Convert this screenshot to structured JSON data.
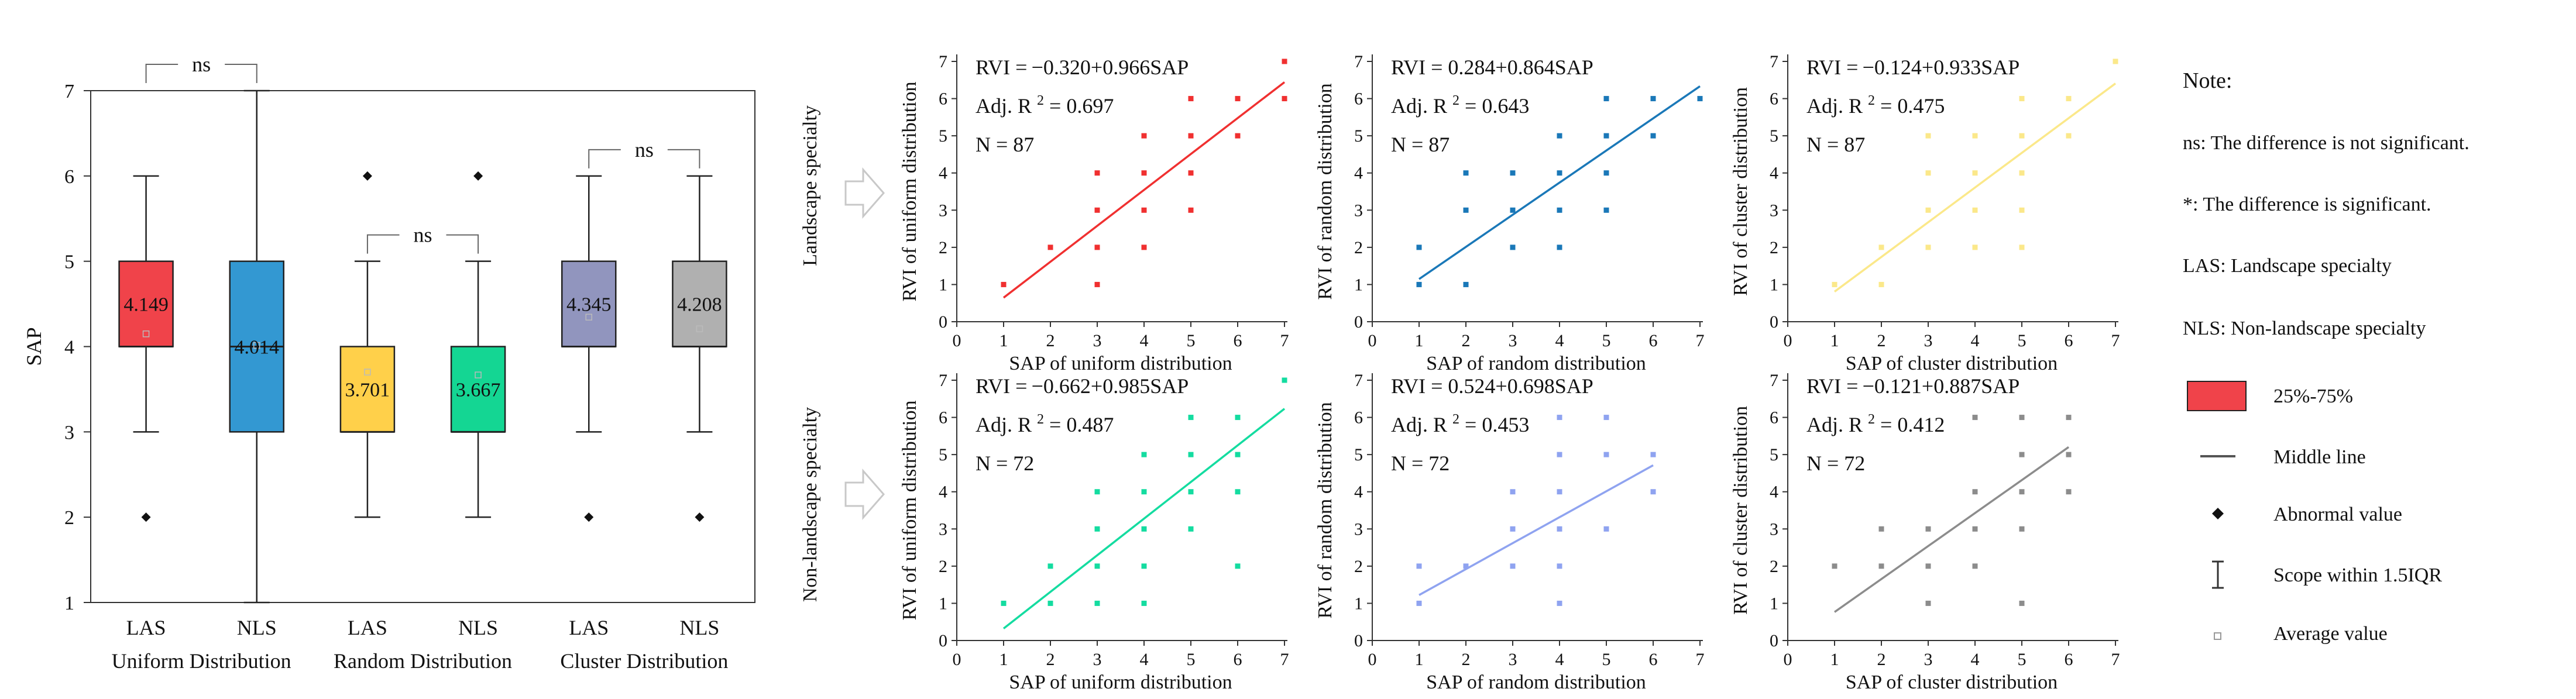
{
  "chart_data": [
    {
      "type": "box",
      "ylabel": "SAP",
      "ylim": [
        1,
        7
      ],
      "yticks": [
        1,
        2,
        3,
        4,
        5,
        6,
        7
      ],
      "groups": [
        "Uniform Distribution",
        "Random Distribution",
        "Cluster Distribution"
      ],
      "boxes": [
        {
          "label": "LAS",
          "group": "Uniform Distribution",
          "color": "#f0434a",
          "q1": 4,
          "median": 4,
          "q3": 5,
          "whisker_low": 3,
          "whisker_high": 6,
          "outliers": [
            2
          ],
          "mean": 4.149,
          "mean_label": "4.149"
        },
        {
          "label": "NLS",
          "group": "Uniform Distribution",
          "color": "#3398d2",
          "q1": 3,
          "median": 4,
          "q3": 5,
          "whisker_low": 1,
          "whisker_high": 7,
          "outliers": [],
          "mean": 4.014,
          "mean_label": "4.014"
        },
        {
          "label": "LAS",
          "group": "Random Distribution",
          "color": "#ffd04a",
          "q1": 3,
          "median": 3,
          "q3": 4,
          "whisker_low": 2,
          "whisker_high": 5,
          "outliers": [
            6
          ],
          "mean": 3.701,
          "mean_label": "3.701"
        },
        {
          "label": "NLS",
          "group": "Random Distribution",
          "color": "#14d693",
          "q1": 3,
          "median": 3,
          "q3": 4,
          "whisker_low": 2,
          "whisker_high": 5,
          "outliers": [
            6
          ],
          "mean": 3.667,
          "mean_label": "3.667"
        },
        {
          "label": "LAS",
          "group": "Cluster Distribution",
          "color": "#9195be",
          "q1": 4,
          "median": 4,
          "q3": 5,
          "whisker_low": 3,
          "whisker_high": 6,
          "outliers": [
            2
          ],
          "mean": 4.345,
          "mean_label": "4.345"
        },
        {
          "label": "NLS",
          "group": "Cluster Distribution",
          "color": "#b0b0b0",
          "q1": 4,
          "median": 4,
          "q3": 5,
          "whisker_low": 3,
          "whisker_high": 6,
          "outliers": [
            2
          ],
          "mean": 4.208,
          "mean_label": "4.208"
        }
      ],
      "significance": [
        {
          "pair": [
            0,
            1
          ],
          "label": "ns"
        },
        {
          "pair": [
            2,
            3
          ],
          "label": "ns"
        },
        {
          "pair": [
            4,
            5
          ],
          "label": "ns"
        }
      ]
    },
    {
      "type": "scatter",
      "row_label": "Landscape specialty",
      "xlabel": "SAP of uniform distribution",
      "ylabel": "RVI of uniform distribution",
      "xlim": [
        0,
        7
      ],
      "ylim": [
        0,
        7
      ],
      "equation": "RVI = −0.320+0.966SAP",
      "r2_label": "Adj. R",
      "r2_value": "= 0.697",
      "n_label": "N = 87",
      "color": "#f03030",
      "intercept": -0.32,
      "slope": 0.966,
      "line_range": [
        1,
        7
      ],
      "points": [
        [
          1,
          1
        ],
        [
          2,
          2
        ],
        [
          3,
          1
        ],
        [
          3,
          2
        ],
        [
          3,
          3
        ],
        [
          3,
          4
        ],
        [
          4,
          2
        ],
        [
          4,
          3
        ],
        [
          4,
          4
        ],
        [
          4,
          5
        ],
        [
          5,
          3
        ],
        [
          5,
          4
        ],
        [
          5,
          5
        ],
        [
          5,
          6
        ],
        [
          6,
          5
        ],
        [
          6,
          6
        ],
        [
          7,
          6
        ],
        [
          7,
          7
        ]
      ]
    },
    {
      "type": "scatter",
      "row_label": "Landscape specialty",
      "xlabel": "SAP of random distribution",
      "ylabel": "RVI of random distribution",
      "xlim": [
        0,
        7
      ],
      "ylim": [
        0,
        7
      ],
      "equation": "RVI = 0.284+0.864SAP",
      "r2_label": "Adj. R",
      "r2_value": "= 0.643",
      "n_label": "N = 87",
      "color": "#1a78b8",
      "intercept": 0.284,
      "slope": 0.864,
      "line_range": [
        1,
        7
      ],
      "points": [
        [
          1,
          1
        ],
        [
          1,
          2
        ],
        [
          2,
          1
        ],
        [
          2,
          3
        ],
        [
          2,
          4
        ],
        [
          3,
          2
        ],
        [
          3,
          3
        ],
        [
          3,
          4
        ],
        [
          4,
          2
        ],
        [
          4,
          3
        ],
        [
          4,
          4
        ],
        [
          4,
          5
        ],
        [
          5,
          3
        ],
        [
          5,
          4
        ],
        [
          5,
          5
        ],
        [
          5,
          6
        ],
        [
          6,
          5
        ],
        [
          6,
          6
        ],
        [
          7,
          6
        ]
      ]
    },
    {
      "type": "scatter",
      "row_label": "Landscape specialty",
      "xlabel": "SAP of cluster distribution",
      "ylabel": "RVI of cluster distribution",
      "xlim": [
        0,
        7
      ],
      "ylim": [
        0,
        7
      ],
      "equation": "RVI = −0.124+0.933SAP",
      "r2_label": "Adj. R",
      "r2_value": "= 0.475",
      "n_label": "N = 87",
      "color": "#fbe88a",
      "intercept": -0.124,
      "slope": 0.933,
      "line_range": [
        1,
        7
      ],
      "points": [
        [
          1,
          1
        ],
        [
          2,
          1
        ],
        [
          2,
          2
        ],
        [
          3,
          2
        ],
        [
          3,
          3
        ],
        [
          3,
          4
        ],
        [
          3,
          5
        ],
        [
          4,
          2
        ],
        [
          4,
          3
        ],
        [
          4,
          4
        ],
        [
          4,
          5
        ],
        [
          5,
          2
        ],
        [
          5,
          3
        ],
        [
          5,
          4
        ],
        [
          5,
          5
        ],
        [
          5,
          6
        ],
        [
          6,
          5
        ],
        [
          6,
          6
        ],
        [
          7,
          7
        ]
      ]
    },
    {
      "type": "scatter",
      "row_label": "Non-landscape specialty",
      "xlabel": "SAP of uniform distribution",
      "ylabel": "RVI of uniform distribution",
      "xlim": [
        0,
        7
      ],
      "ylim": [
        0,
        7
      ],
      "equation": "RVI = −0.662+0.985SAP",
      "r2_label": "Adj. R",
      "r2_value": "= 0.487",
      "n_label": "N = 72",
      "color": "#14dca0",
      "intercept": -0.662,
      "slope": 0.985,
      "line_range": [
        1,
        7
      ],
      "points": [
        [
          1,
          1
        ],
        [
          2,
          1
        ],
        [
          2,
          2
        ],
        [
          3,
          1
        ],
        [
          3,
          2
        ],
        [
          3,
          3
        ],
        [
          3,
          4
        ],
        [
          4,
          1
        ],
        [
          4,
          2
        ],
        [
          4,
          3
        ],
        [
          4,
          4
        ],
        [
          4,
          5
        ],
        [
          5,
          3
        ],
        [
          5,
          4
        ],
        [
          5,
          5
        ],
        [
          5,
          6
        ],
        [
          6,
          2
        ],
        [
          6,
          4
        ],
        [
          6,
          5
        ],
        [
          6,
          6
        ],
        [
          7,
          7
        ]
      ]
    },
    {
      "type": "scatter",
      "row_label": "Non-landscape specialty",
      "xlabel": "SAP of random distribution",
      "ylabel": "RVI of random distribution",
      "xlim": [
        0,
        7
      ],
      "ylim": [
        0,
        7
      ],
      "equation": "RVI = 0.524+0.698SAP",
      "r2_label": "Adj. R",
      "r2_value": "= 0.453",
      "n_label": "N = 72",
      "color": "#8fa3f0",
      "intercept": 0.524,
      "slope": 0.698,
      "line_range": [
        1,
        6
      ],
      "points": [
        [
          1,
          1
        ],
        [
          1,
          2
        ],
        [
          2,
          2
        ],
        [
          3,
          2
        ],
        [
          3,
          3
        ],
        [
          3,
          4
        ],
        [
          4,
          1
        ],
        [
          4,
          2
        ],
        [
          4,
          3
        ],
        [
          4,
          4
        ],
        [
          4,
          5
        ],
        [
          4,
          6
        ],
        [
          5,
          3
        ],
        [
          5,
          5
        ],
        [
          5,
          6
        ],
        [
          6,
          4
        ],
        [
          6,
          5
        ]
      ]
    },
    {
      "type": "scatter",
      "row_label": "Non-landscape specialty",
      "xlabel": "SAP of cluster distribution",
      "ylabel": "RVI of cluster distribution",
      "xlim": [
        0,
        7
      ],
      "ylim": [
        0,
        7
      ],
      "equation": "RVI = −0.121+0.887SAP",
      "r2_label": "Adj. R",
      "r2_value": "= 0.412",
      "n_label": "N = 72",
      "color": "#8c8c8c",
      "intercept": -0.121,
      "slope": 0.887,
      "line_range": [
        1,
        6
      ],
      "points": [
        [
          1,
          2
        ],
        [
          2,
          2
        ],
        [
          2,
          3
        ],
        [
          3,
          1
        ],
        [
          3,
          2
        ],
        [
          3,
          3
        ],
        [
          4,
          2
        ],
        [
          4,
          3
        ],
        [
          4,
          4
        ],
        [
          4,
          6
        ],
        [
          5,
          1
        ],
        [
          5,
          3
        ],
        [
          5,
          4
        ],
        [
          5,
          5
        ],
        [
          5,
          6
        ],
        [
          6,
          4
        ],
        [
          6,
          5
        ],
        [
          6,
          6
        ]
      ]
    }
  ],
  "legend": {
    "title": "Note:",
    "ns_text": "ns: The difference is not significant.",
    "sig_text": "*:  The difference is significant.",
    "las_text": "LAS: Landscape specialty",
    "nls_text": "NLS: Non-landscape specialty",
    "box_label": "25%-75%",
    "box_color": "#f0434a",
    "line_label": "Middle line",
    "abnormal_label": "Abnormal value",
    "scope_label": "Scope within 1.5IQR",
    "average_label": "Average value"
  }
}
